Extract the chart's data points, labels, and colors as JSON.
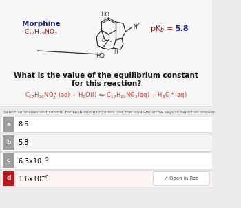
{
  "bg_color": "#ebebeb",
  "white_top_bg": "#f7f7f7",
  "morphine_label": "Morphine",
  "morphine_label_color": "#1a237e",
  "morphine_formula": "C$_{17}$H$_{19}$NO$_3$",
  "morphine_formula_color": "#8b1a1a",
  "pkb_text_color": "#8b1a1a",
  "pkb_value_color": "#1a237e",
  "title_line1": "What is the value of the equilibrium constant",
  "title_line2": "for this reaction?",
  "title_color": "#111111",
  "reaction_color": "#c0392b",
  "instruction": "Select an answer and submit. For keyboard navigation, use the up/down arrow keys to select an answer.",
  "options": [
    {
      "letter": "a",
      "text": "8.6",
      "selected": false
    },
    {
      "letter": "b",
      "text": "5.8",
      "selected": false
    },
    {
      "letter": "c",
      "text_latex": "6.3x10$^{-9}$",
      "selected": false
    },
    {
      "letter": "d",
      "text_latex": "1.6x10$^{-6}$",
      "selected": true
    }
  ],
  "selected_color": "#b71c1c",
  "unselected_letter_color": "#9e9e9e",
  "option_row_colors": [
    "#ffffff",
    "#f5f5f5",
    "#ffffff",
    "#ffffff"
  ],
  "selected_row_color": "#fff5f5",
  "option_border_color": "#d0d0d0",
  "open_in_text": "↗ Open in Rea",
  "separator_color": "#cccccc",
  "text_color": "#333333"
}
